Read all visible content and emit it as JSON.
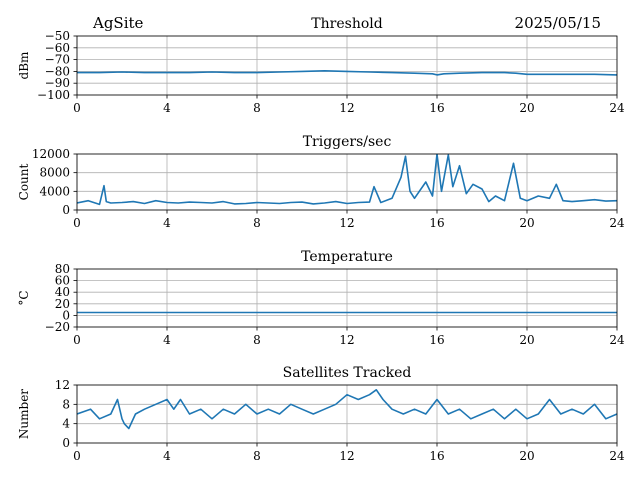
{
  "header": {
    "site": "AgSite",
    "date": "2025/05/15"
  },
  "colors": {
    "line": "#1f77b4",
    "grid": "#b0b0b0",
    "axes": "#000000"
  },
  "chart_data": [
    {
      "type": "line",
      "title": "Threshold",
      "ylabel": "dBm",
      "xlim": [
        0,
        24
      ],
      "xticks": [
        "0",
        "4",
        "8",
        "12",
        "16",
        "20",
        "24"
      ],
      "ylim": [
        -100,
        -50
      ],
      "yticks": [
        "−50",
        "−60",
        "−70",
        "−80",
        "−90",
        "−100"
      ],
      "ytick_values": [
        -50,
        -60,
        -70,
        -80,
        -90,
        -100
      ],
      "grid": true,
      "series": [
        {
          "x": [
            0,
            1,
            2,
            3,
            4,
            5,
            6,
            7,
            8,
            9,
            10,
            11,
            12,
            13,
            14,
            15,
            15.8,
            16,
            16.3,
            17,
            18,
            19,
            19.5,
            20,
            21,
            22,
            23,
            24
          ],
          "values": [
            -81,
            -81,
            -80.5,
            -81,
            -81,
            -81,
            -80.5,
            -81,
            -81,
            -80.5,
            -80,
            -79.5,
            -80,
            -80.5,
            -81,
            -81.5,
            -82,
            -83,
            -82,
            -81.5,
            -81,
            -81,
            -81.5,
            -82.5,
            -82.5,
            -82.5,
            -82.5,
            -83
          ]
        }
      ]
    },
    {
      "type": "line",
      "title": "Triggers/sec",
      "ylabel": "Count",
      "xlim": [
        0,
        24
      ],
      "xticks": [
        "0",
        "4",
        "8",
        "12",
        "16",
        "20",
        "24"
      ],
      "ylim": [
        0,
        12000
      ],
      "yticks": [
        "12000",
        "8000",
        "4000",
        "0"
      ],
      "ytick_values": [
        12000,
        8000,
        4000,
        0
      ],
      "grid": true,
      "series": [
        {
          "x": [
            0,
            0.5,
            1,
            1.2,
            1.3,
            1.5,
            2,
            2.5,
            3,
            3.5,
            4,
            4.5,
            5,
            5.5,
            6,
            6.5,
            7,
            7.5,
            8,
            8.5,
            9,
            9.5,
            10,
            10.5,
            11,
            11.5,
            12,
            12.5,
            13,
            13.2,
            13.5,
            14,
            14.4,
            14.6,
            14.8,
            15,
            15.5,
            15.8,
            16,
            16.2,
            16.5,
            16.7,
            17,
            17.3,
            17.6,
            18,
            18.3,
            18.6,
            19,
            19.4,
            19.7,
            20,
            20.5,
            21,
            21.3,
            21.6,
            22,
            22.5,
            23,
            23.5,
            24
          ],
          "values": [
            1500,
            2000,
            1200,
            5200,
            1800,
            1500,
            1600,
            1800,
            1400,
            2000,
            1600,
            1500,
            1700,
            1600,
            1500,
            1800,
            1300,
            1400,
            1600,
            1500,
            1400,
            1600,
            1700,
            1300,
            1500,
            1800,
            1400,
            1600,
            1700,
            5000,
            1600,
            2500,
            7000,
            11500,
            4000,
            2500,
            6000,
            3000,
            12000,
            4000,
            11800,
            5000,
            9500,
            3500,
            5500,
            4500,
            1800,
            3000,
            2000,
            10000,
            2500,
            2000,
            3000,
            2500,
            5500,
            2000,
            1800,
            2000,
            2200,
            1900,
            2000
          ]
        }
      ]
    },
    {
      "type": "line",
      "title": "Temperature",
      "ylabel": "°C",
      "xlim": [
        0,
        24
      ],
      "xticks": [
        "0",
        "4",
        "8",
        "12",
        "16",
        "20",
        "24"
      ],
      "ylim": [
        -20,
        80
      ],
      "yticks": [
        "80",
        "60",
        "40",
        "20",
        "0",
        "−20"
      ],
      "ytick_values": [
        80,
        60,
        40,
        20,
        0,
        -20
      ],
      "grid": true,
      "series": [
        {
          "x": [
            0,
            24
          ],
          "values": [
            5,
            5
          ]
        }
      ]
    },
    {
      "type": "line",
      "title": "Satellites Tracked",
      "ylabel": "Number",
      "xlim": [
        0,
        24
      ],
      "xticks": [
        "0",
        "4",
        "8",
        "12",
        "16",
        "20",
        "24"
      ],
      "ylim": [
        0,
        12
      ],
      "yticks": [
        "12",
        "8",
        "4",
        "0"
      ],
      "ytick_values": [
        12,
        8,
        4,
        0
      ],
      "grid": true,
      "series": [
        {
          "x": [
            0,
            0.6,
            1,
            1.5,
            1.8,
            2,
            2.1,
            2.3,
            2.6,
            3,
            3.5,
            4,
            4.3,
            4.6,
            5,
            5.5,
            6,
            6.5,
            7,
            7.5,
            8,
            8.5,
            9,
            9.5,
            10,
            10.5,
            11,
            11.5,
            12,
            12.5,
            13,
            13.3,
            13.6,
            14,
            14.5,
            15,
            15.5,
            16,
            16.5,
            17,
            17.5,
            18,
            18.5,
            19,
            19.5,
            20,
            20.5,
            21,
            21.5,
            22,
            22.5,
            23,
            23.5,
            24
          ],
          "values": [
            6,
            7,
            5,
            6,
            9,
            5,
            4,
            3,
            6,
            7,
            8,
            9,
            7,
            9,
            6,
            7,
            5,
            7,
            6,
            8,
            6,
            7,
            6,
            8,
            7,
            6,
            7,
            8,
            10,
            9,
            10,
            11,
            9,
            7,
            6,
            7,
            6,
            9,
            6,
            7,
            5,
            6,
            7,
            5,
            7,
            5,
            6,
            9,
            6,
            7,
            6,
            8,
            5,
            6
          ]
        }
      ]
    }
  ]
}
